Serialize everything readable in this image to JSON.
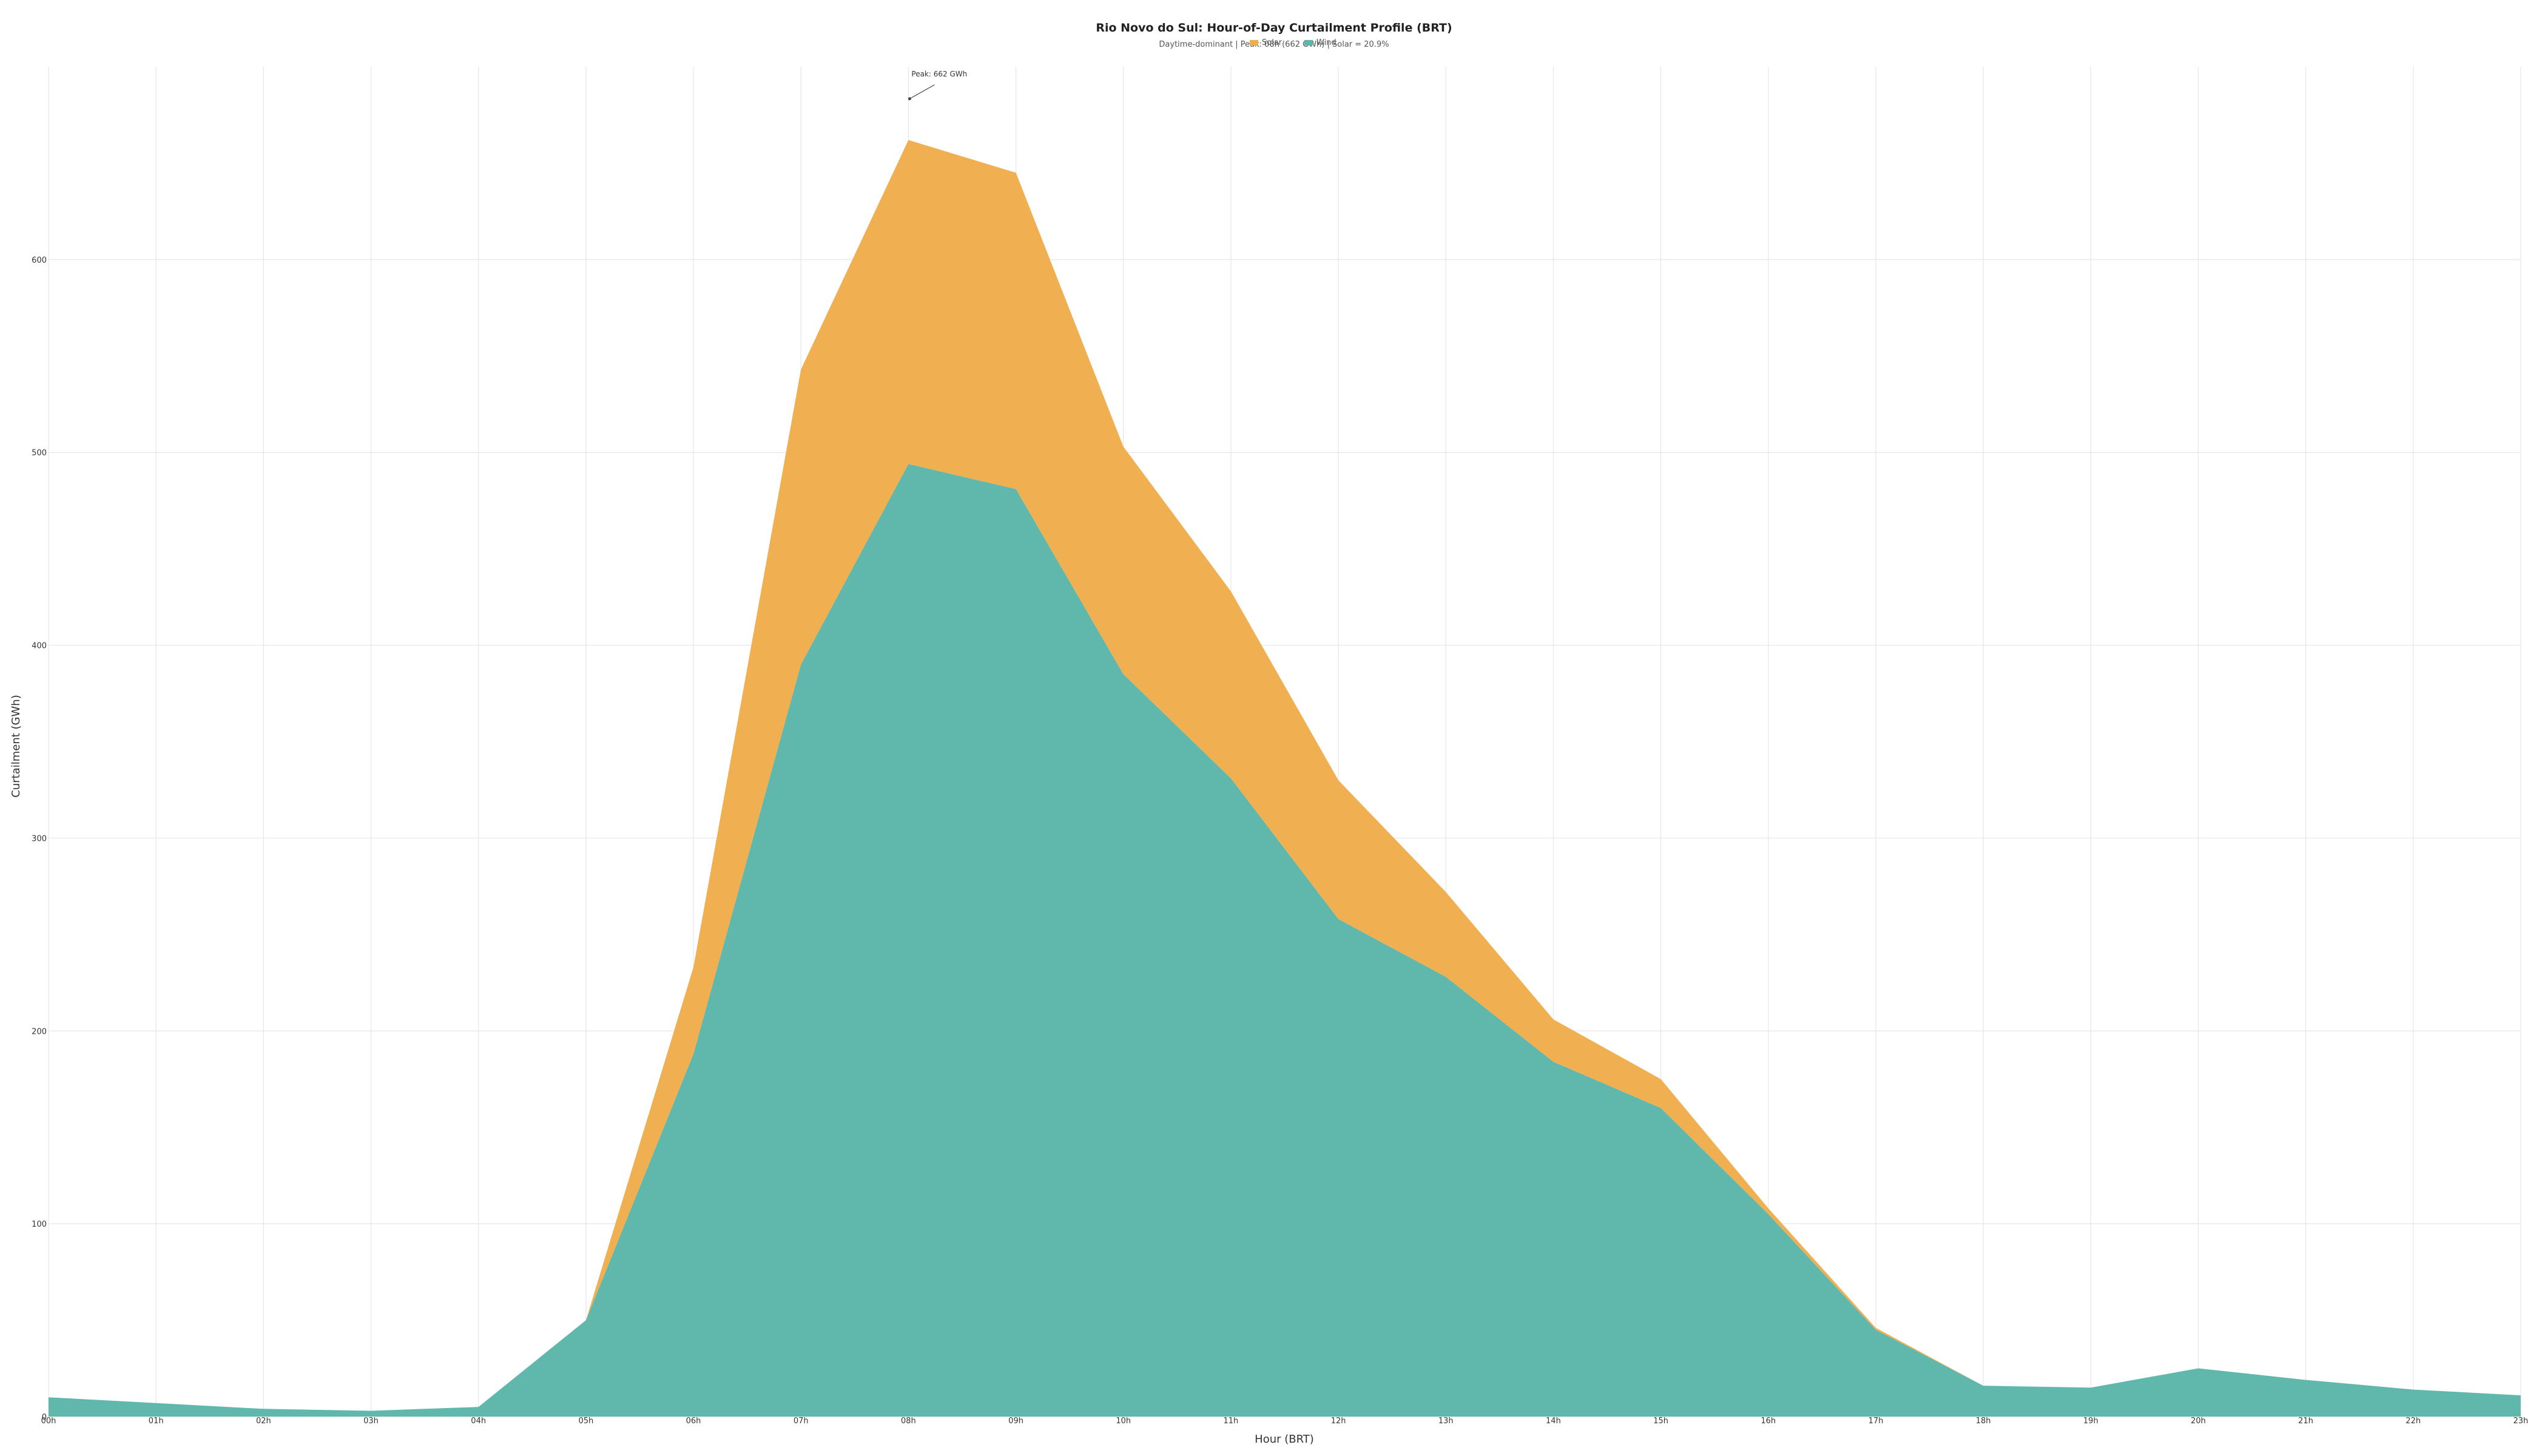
{
  "chart_data": {
    "type": "area",
    "stacked": true,
    "title": "Rio Novo do Sul: Hour-of-Day Curtailment Profile (BRT)",
    "subtitle": "Daytime-dominant | Peak: 08h (662 GWh) | Solar = 20.9%",
    "xlabel": "Hour (BRT)",
    "ylabel": "Curtailment (GWh)",
    "ylim": [
      0,
      700
    ],
    "y_ticks": [
      0,
      100,
      200,
      300,
      400,
      500,
      600
    ],
    "grid": true,
    "legend_placement": "top-center",
    "categories": [
      "00h",
      "01h",
      "02h",
      "03h",
      "04h",
      "05h",
      "06h",
      "07h",
      "08h",
      "09h",
      "10h",
      "11h",
      "12h",
      "13h",
      "14h",
      "15h",
      "16h",
      "17h",
      "18h",
      "19h",
      "20h",
      "21h",
      "22h",
      "23h"
    ],
    "series": [
      {
        "name": "Wind",
        "color": "#5db6a9",
        "values": [
          10,
          7,
          4,
          3,
          5,
          50,
          188,
          390,
          494,
          481,
          385,
          331,
          258,
          228,
          184,
          160,
          105,
          45,
          16,
          15,
          25,
          19,
          14,
          11
        ]
      },
      {
        "name": "Solar",
        "color": "#f0ad4e",
        "values": [
          0,
          0,
          0,
          0,
          0,
          0,
          45,
          153,
          168,
          164,
          118,
          97,
          72,
          44,
          22,
          15,
          3,
          1,
          0,
          0,
          0,
          0,
          0,
          0
        ]
      }
    ],
    "annotations": [
      {
        "text": "Peak: 662 GWh",
        "x": "08h",
        "y": 662
      }
    ]
  }
}
